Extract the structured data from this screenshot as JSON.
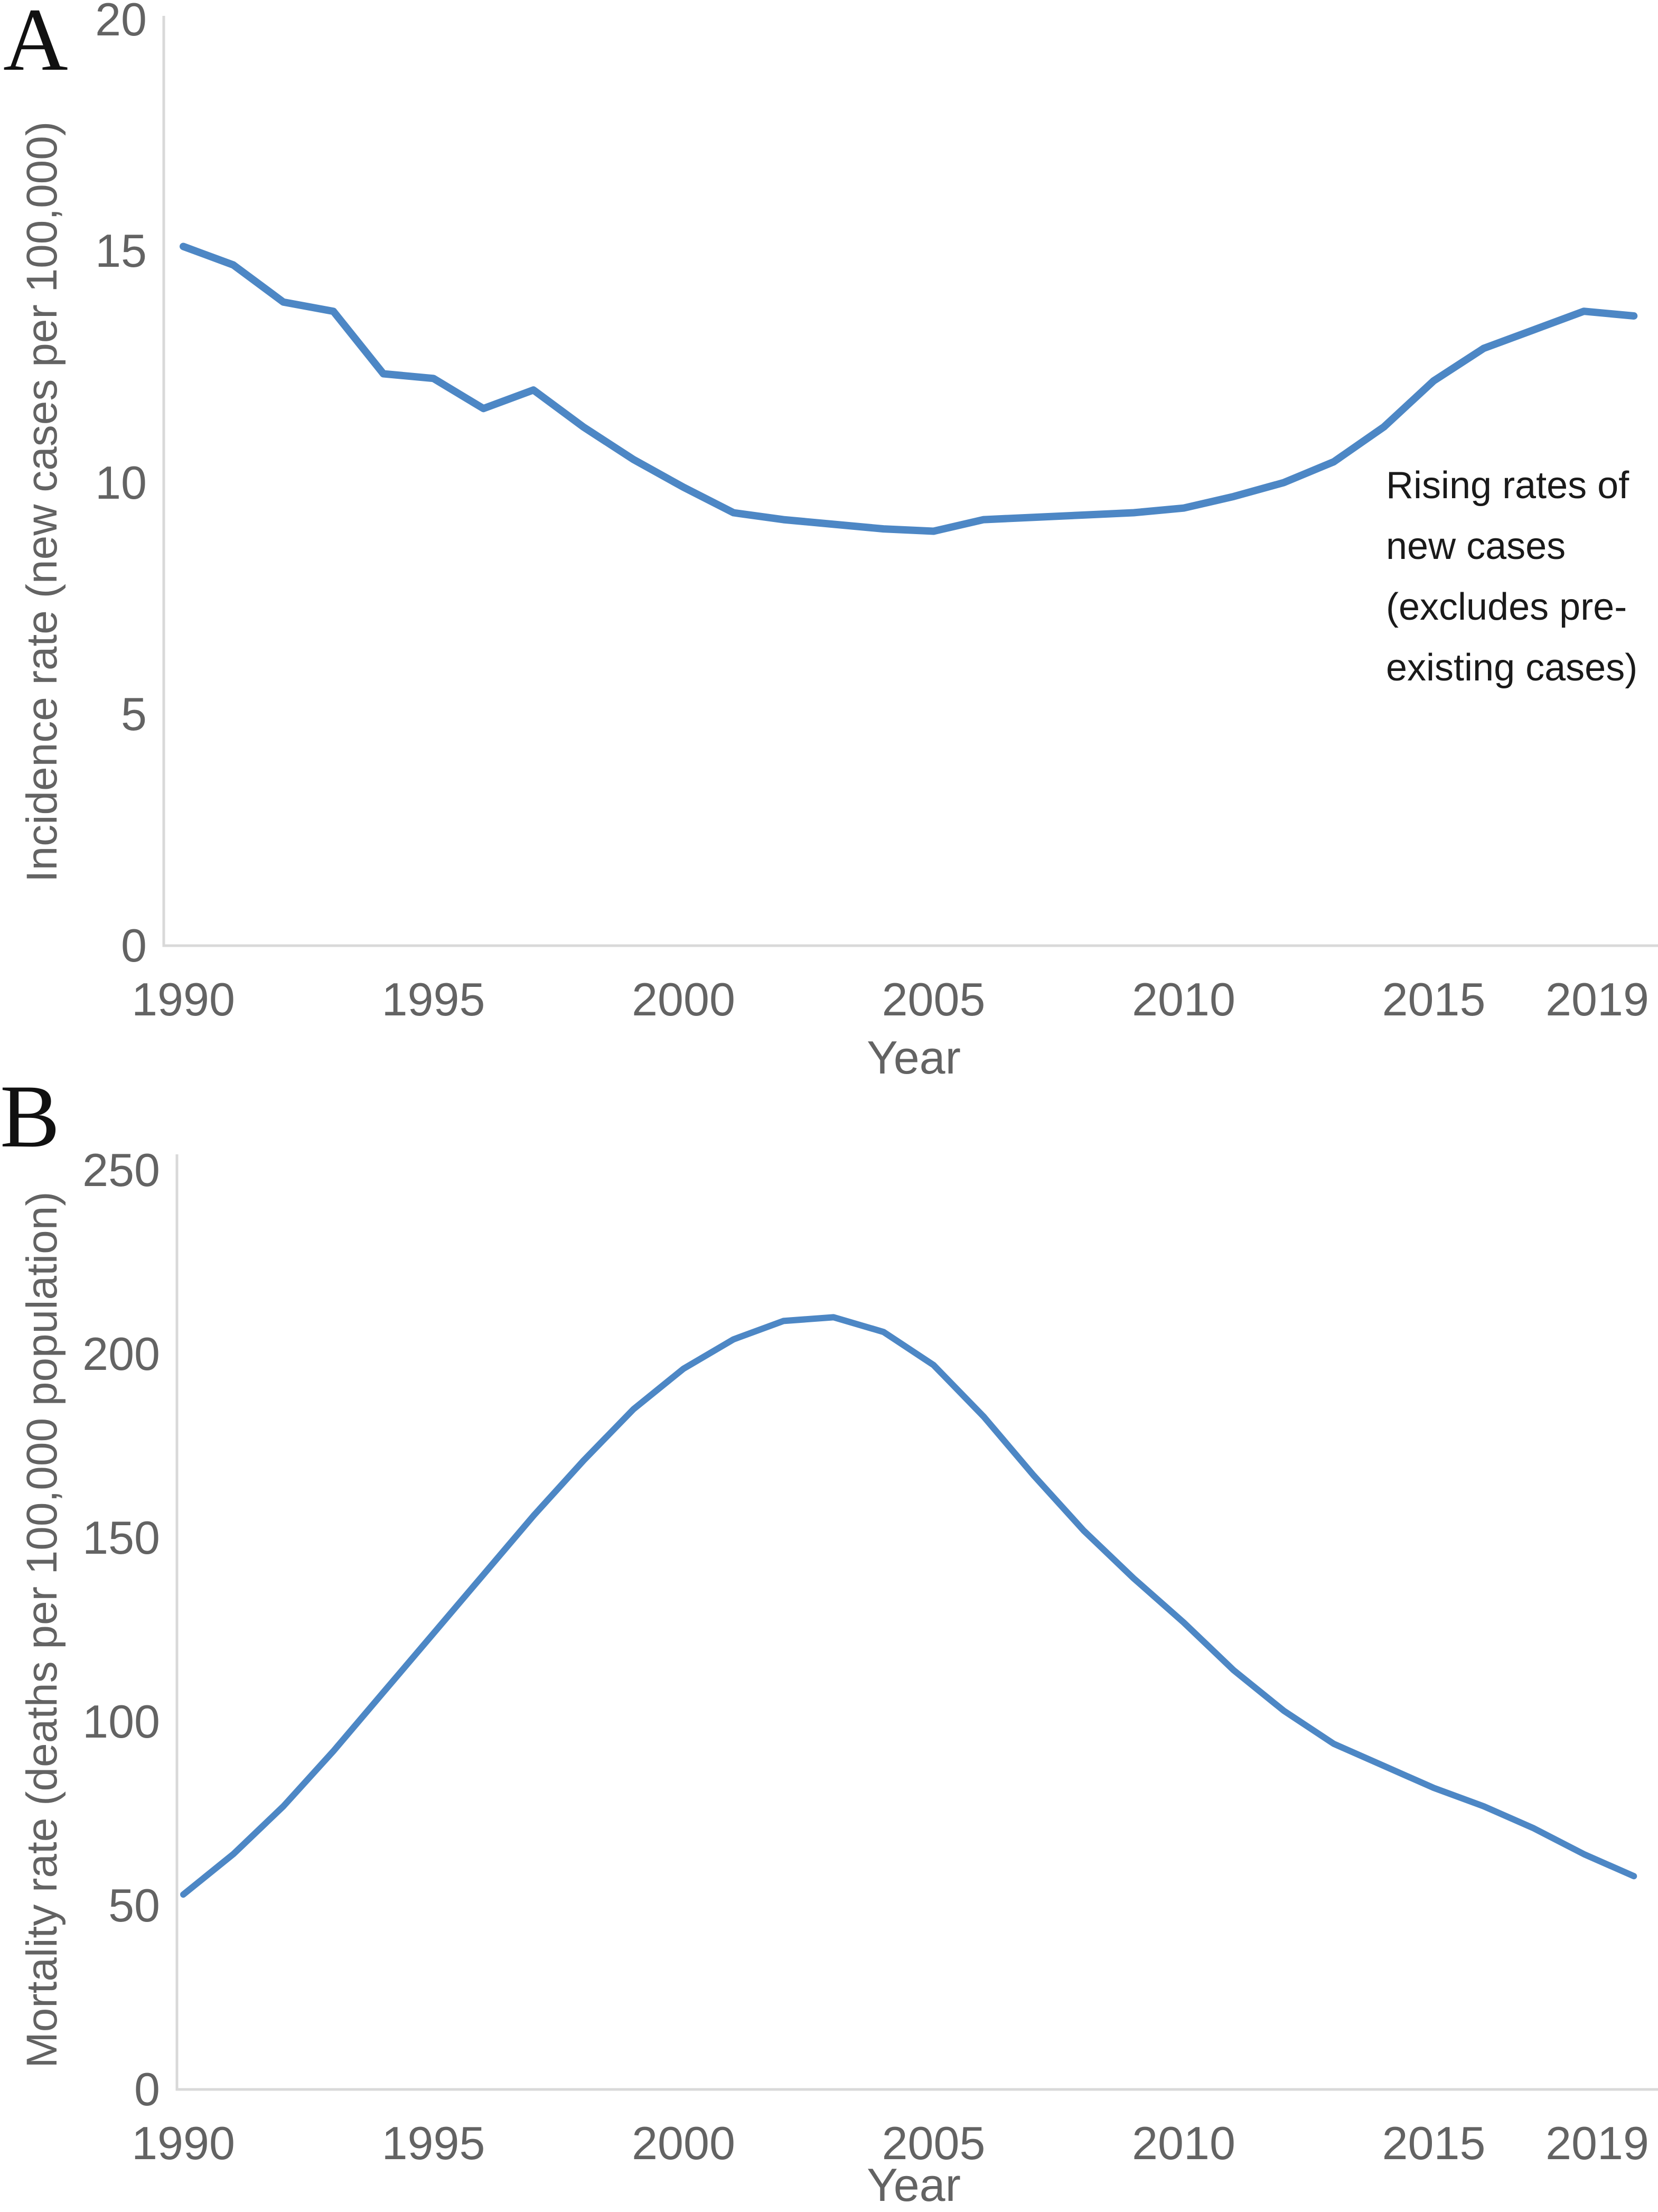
{
  "figure": {
    "panels": [
      {
        "letter": "A",
        "y_axis_title": "Incidence rate (new cases per 100,000)",
        "x_axis_title": "Year"
      },
      {
        "letter": "B",
        "y_axis_title": "Mortality rate (deaths per 100,000 population)",
        "x_axis_title": "Year"
      }
    ]
  },
  "colors": {
    "line": "#4d87c5",
    "axis_line": "#d9d9d9",
    "tick_label": "#636363",
    "axis_title": "#636363",
    "annotation_text": "#1a1a1a",
    "panel_letter": "#111111",
    "background": "#ffffff"
  },
  "chart_data": [
    {
      "type": "line",
      "title": "",
      "xlabel": "Year",
      "ylabel": "Incidence rate (new cases per 100,000)",
      "x": [
        1990,
        1991,
        1992,
        1993,
        1994,
        1995,
        1996,
        1997,
        1998,
        1999,
        2000,
        2001,
        2002,
        2003,
        2004,
        2005,
        2006,
        2007,
        2008,
        2009,
        2010,
        2011,
        2012,
        2013,
        2014,
        2015,
        2016,
        2017,
        2018,
        2019
      ],
      "series": [
        {
          "name": "Incidence rate (new cases per 100,000)",
          "values": [
            15.1,
            14.7,
            13.9,
            13.7,
            12.35,
            12.25,
            11.6,
            12.0,
            11.2,
            10.5,
            9.9,
            9.35,
            9.2,
            9.1,
            9.0,
            8.95,
            9.2,
            9.25,
            9.3,
            9.35,
            9.45,
            9.7,
            10.0,
            10.45,
            11.2,
            12.2,
            12.9,
            13.3,
            13.7,
            13.6
          ]
        }
      ],
      "xlim": [
        1990,
        2019
      ],
      "ylim": [
        0,
        20
      ],
      "yticks": [
        0,
        5,
        10,
        15,
        20
      ],
      "xticks": [
        1990,
        1995,
        2000,
        2005,
        2010,
        2015,
        2019
      ],
      "grid": false,
      "legend": "none",
      "annotation": "Rising rates of new cases (excludes pre-existing cases)",
      "annotation_lines": [
        "Rising rates of",
        "new cases",
        "(excludes pre-",
        "existing cases)"
      ]
    },
    {
      "type": "line",
      "title": "",
      "xlabel": "Year",
      "ylabel": "Mortality rate (deaths per 100,000 population)",
      "x": [
        1990,
        1991,
        1992,
        1993,
        1994,
        1995,
        1996,
        1997,
        1998,
        1999,
        2000,
        2001,
        2002,
        2003,
        2004,
        2005,
        2006,
        2007,
        2008,
        2009,
        2010,
        2011,
        2012,
        2013,
        2014,
        2015,
        2016,
        2017,
        2018,
        2019
      ],
      "series": [
        {
          "name": "Mortality rate (deaths per 100,000 population)",
          "values": [
            53,
            64,
            77,
            92,
            108,
            124,
            140,
            156,
            171,
            185,
            196,
            204,
            209,
            210,
            206,
            197,
            183,
            167,
            152,
            139,
            127,
            114,
            103,
            94,
            88,
            82,
            77,
            71,
            64,
            58
          ]
        }
      ],
      "xlim": [
        1990,
        2019
      ],
      "ylim": [
        0,
        250
      ],
      "yticks": [
        0,
        50,
        100,
        150,
        200,
        250
      ],
      "xticks": [
        1990,
        1995,
        2000,
        2005,
        2010,
        2015,
        2019
      ],
      "grid": false,
      "legend": "none",
      "annotation": ""
    }
  ]
}
